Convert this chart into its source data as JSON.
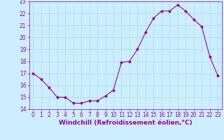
{
  "x": [
    0,
    1,
    2,
    3,
    4,
    5,
    6,
    7,
    8,
    9,
    10,
    11,
    12,
    13,
    14,
    15,
    16,
    17,
    18,
    19,
    20,
    21,
    22,
    23
  ],
  "y": [
    17.0,
    16.5,
    15.8,
    15.0,
    15.0,
    14.5,
    14.5,
    14.7,
    14.7,
    15.1,
    15.6,
    17.9,
    18.0,
    19.0,
    20.4,
    21.6,
    22.2,
    22.2,
    22.7,
    22.2,
    21.5,
    20.9,
    18.4,
    16.8
  ],
  "line_color": "#990099",
  "marker": "D",
  "marker_size": 2,
  "bg_color": "#cceeff",
  "grid_color": "#aadddd",
  "xlabel": "Windchill (Refroidissement éolien,°C)",
  "xlabel_color": "#990099",
  "ylim": [
    14,
    23
  ],
  "xlim": [
    -0.5,
    23.5
  ],
  "yticks": [
    14,
    15,
    16,
    17,
    18,
    19,
    20,
    21,
    22,
    23
  ],
  "xticks": [
    0,
    1,
    2,
    3,
    4,
    5,
    6,
    7,
    8,
    9,
    10,
    11,
    12,
    13,
    14,
    15,
    16,
    17,
    18,
    19,
    20,
    21,
    22,
    23
  ],
  "tick_color": "#990099",
  "tick_label_fontsize": 5.5,
  "xlabel_fontsize": 6.5
}
